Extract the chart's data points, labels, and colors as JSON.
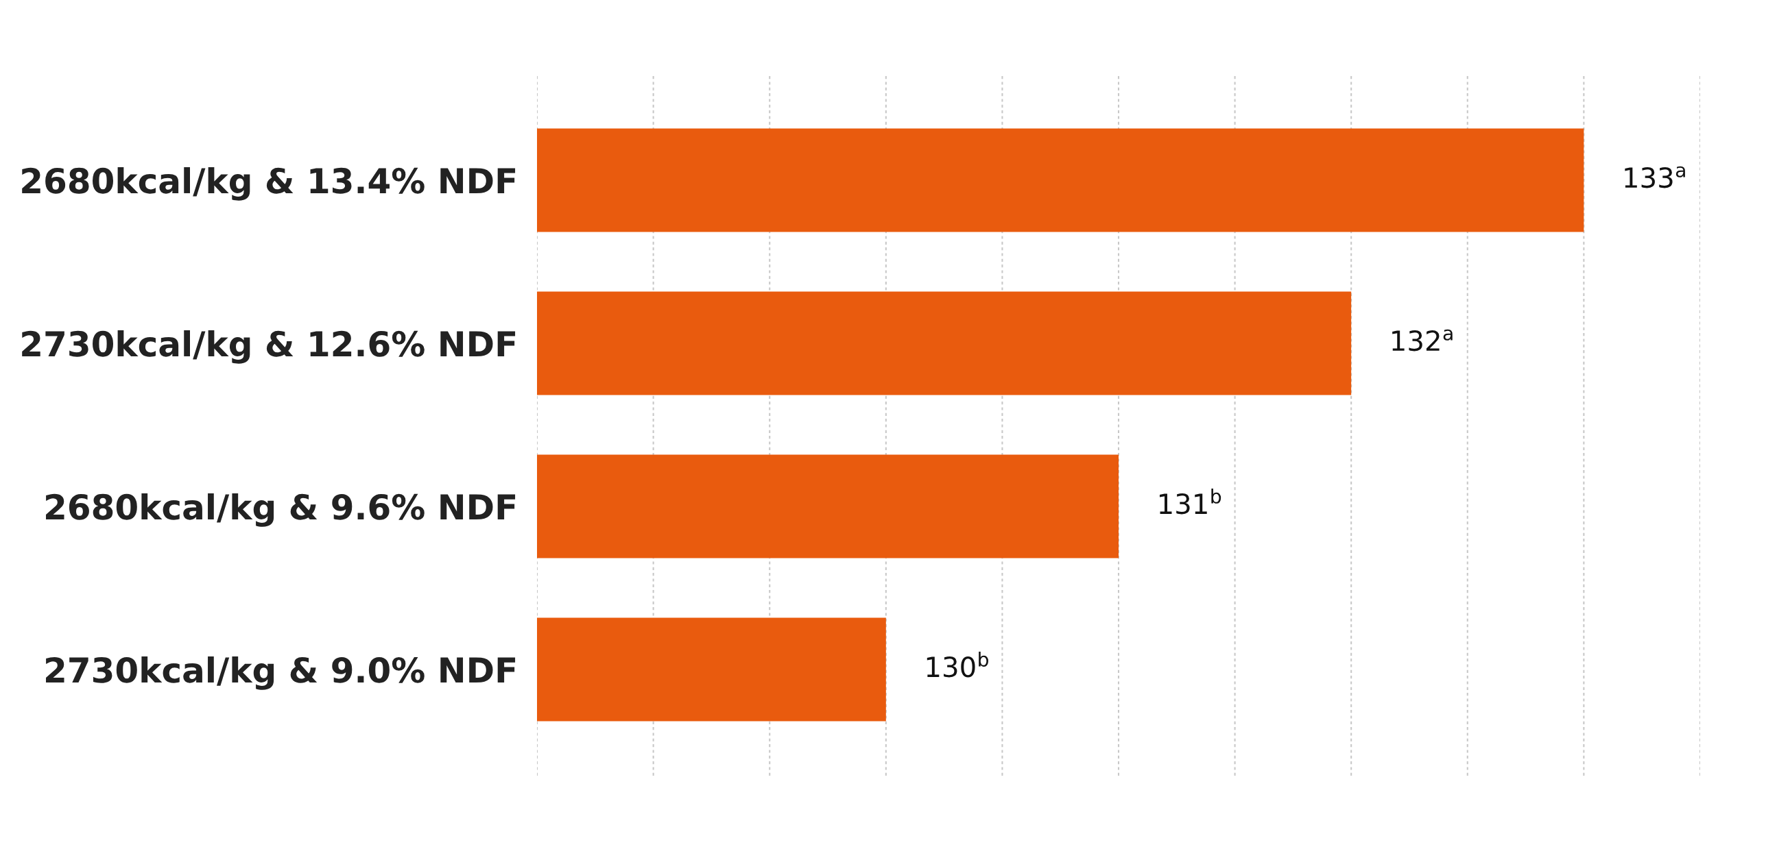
{
  "chart_data": {
    "type": "bar",
    "orientation": "horizontal",
    "categories": [
      "2680kcal/kg & 13.4% NDF",
      "2730kcal/kg & 12.6% NDF",
      "2680kcal/kg & 9.6% NDF",
      "2730kcal/kg & 9.0% NDF"
    ],
    "values": [
      133,
      132,
      131,
      130
    ],
    "color": "#e95b0e",
    "value_labels": [
      "133$^{a}$",
      "132$^{a}$",
      "131$^{b}$",
      "130$^{b}$"
    ],
    "xlim": [
      128.5,
      133.5
    ],
    "xticks": [
      {
        "value": 128.5,
        "label": null
      },
      {
        "value": 129,
        "label": null
      },
      {
        "value": 129.5,
        "label": null
      },
      {
        "value": 130,
        "label": null
      },
      {
        "value": 130.5,
        "label": null
      },
      {
        "value": 131,
        "label": null
      },
      {
        "value": 131.5,
        "label": null
      },
      {
        "value": 132,
        "label": null
      },
      {
        "value": 132.5,
        "label": null
      },
      {
        "value": 133,
        "label": null
      },
      {
        "value": 133.5,
        "label": null
      }
    ],
    "grid": "x",
    "tick_labels": "y"
  }
}
